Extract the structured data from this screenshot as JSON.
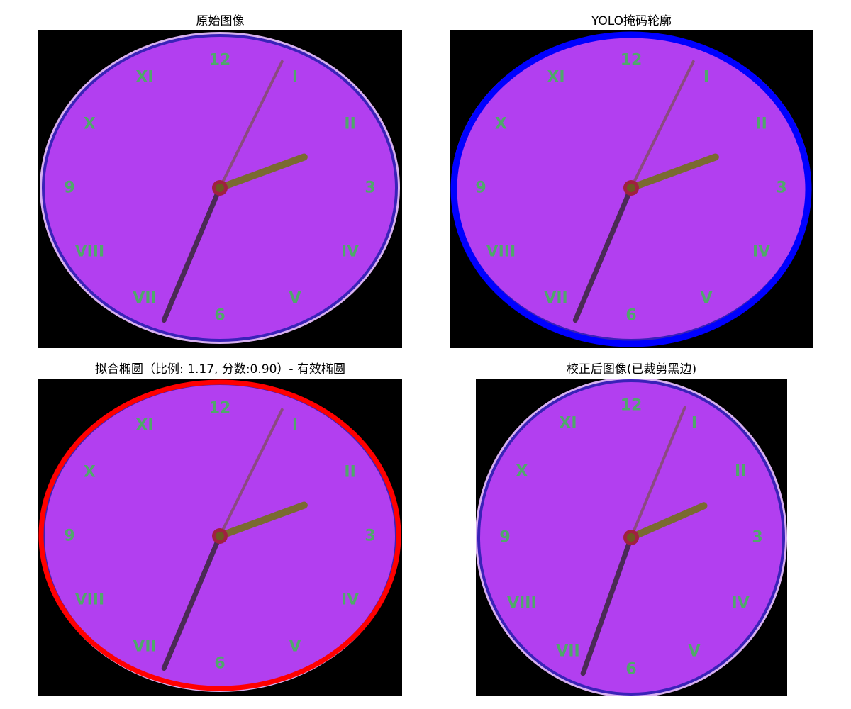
{
  "panels": [
    {
      "title": "原始图像"
    },
    {
      "title": "YOLO掩码轮廓"
    },
    {
      "title": "拟合椭圆（比例: 1.17, 分数:0.90）- 有效椭圆"
    },
    {
      "title": "校正后图像(已裁剪黑边)"
    }
  ],
  "clock": {
    "numerals": [
      "12",
      "I",
      "II",
      "3",
      "IV",
      "V",
      "6",
      "VII",
      "VIII",
      "9",
      "X",
      "XI"
    ],
    "face_color": "#b23ff0",
    "rim_color": "#3a22b8",
    "numeral_color": "#4fa86a",
    "hour_hand_color": "#7a6a30",
    "minute_hand_color": "#4a2a55",
    "second_hand_color": "#8a4a80",
    "center_color": "#a02040"
  },
  "overlays": {
    "mask_contour_color": "#0000ff",
    "fitted_ellipse_color": "#ff0000"
  }
}
